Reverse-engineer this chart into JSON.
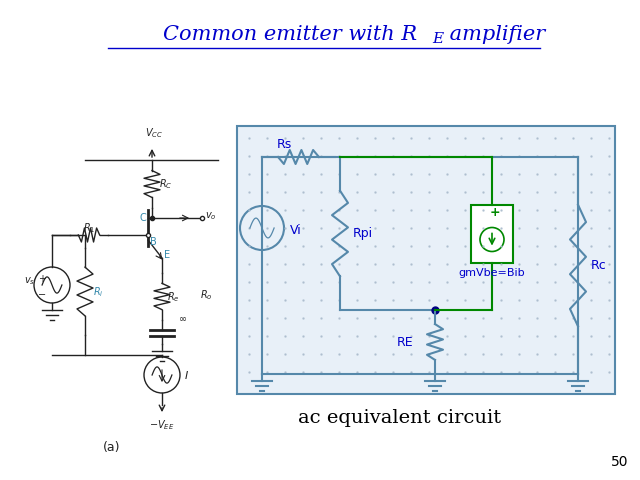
{
  "title": "Common emitter with R",
  "title_sub": "E",
  "title_rest": " amplifier",
  "subtitle": "ac equivalent circuit",
  "page_number": "50",
  "bg_color": "#ffffff",
  "title_color": "#0000cc",
  "circuit_box_color": "#5588aa",
  "circuit_bg_color": "#e8f0f8",
  "wire_color": "#5588aa",
  "label_color": "#0000cc",
  "green_color": "#008800",
  "dot_color": "#000080"
}
